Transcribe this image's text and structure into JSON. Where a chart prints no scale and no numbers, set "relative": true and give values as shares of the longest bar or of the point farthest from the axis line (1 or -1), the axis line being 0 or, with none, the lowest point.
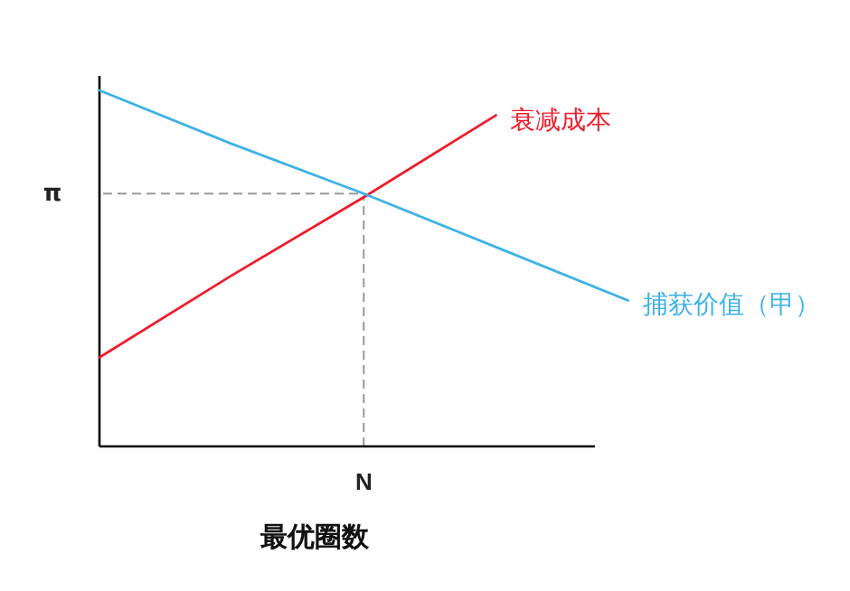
{
  "chart_data": {
    "type": "line",
    "relative": true,
    "xlabel": "最优圈数",
    "marker": "none",
    "legend": false,
    "categories": [
      null,
      null,
      null,
      null,
      null
    ],
    "annotations": [
      "N"
    ],
    "series": [
      {
        "name": "衰减成本",
        "color": "#ef1c2c",
        "values": [
          0.25,
          0.48,
          0.7,
          0.93,
          null
        ]
      },
      {
        "name": "捕获价值（甲）",
        "color": "#3fb2e6",
        "values": [
          1,
          0.85,
          0.71,
          0.56,
          0.41
        ]
      }
    ],
    "ref_lines": [
      {
        "axis": "y",
        "value": 0.71,
        "label": "π",
        "color": "#999999",
        "line_style": "dashed"
      }
    ]
  }
}
